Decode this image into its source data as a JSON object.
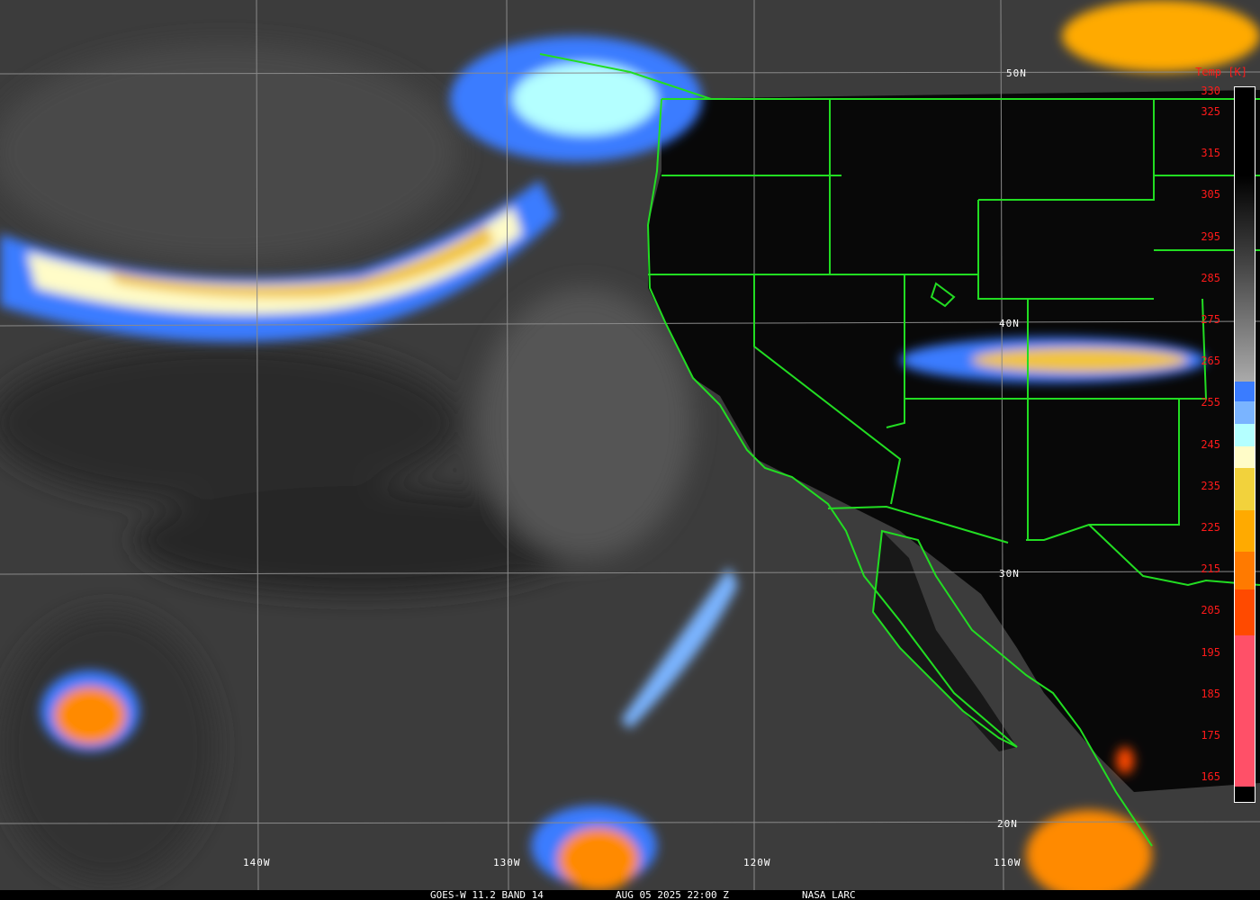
{
  "colorbar": {
    "title": "Temp [K]",
    "ticks": [
      "330",
      "325",
      "315",
      "305",
      "295",
      "285",
      "275",
      "265",
      "255",
      "245",
      "235",
      "225",
      "215",
      "205",
      "195",
      "185",
      "175",
      "165"
    ],
    "colors": {
      "blue": "#3a7cff",
      "light_blue": "#7ab4ff",
      "pale_cyan": "#b4ffff",
      "cream": "#fffcc8",
      "yellow": "#f2d23c",
      "orange": "#ffaa00",
      "dark_orange": "#ff7a00",
      "red_orange": "#ff4a00",
      "pink": "#ff5068"
    }
  },
  "longitude_labels": [
    "140W",
    "130W",
    "120W",
    "110W"
  ],
  "latitude_labels": [
    "50N",
    "40N",
    "30N",
    "20N"
  ],
  "caption": {
    "product": "GOES-W 11.2 BAND 14",
    "datetime": "AUG 05 2025 22:00 Z",
    "source": "NASA LARC"
  },
  "border_color": "#22dd22"
}
